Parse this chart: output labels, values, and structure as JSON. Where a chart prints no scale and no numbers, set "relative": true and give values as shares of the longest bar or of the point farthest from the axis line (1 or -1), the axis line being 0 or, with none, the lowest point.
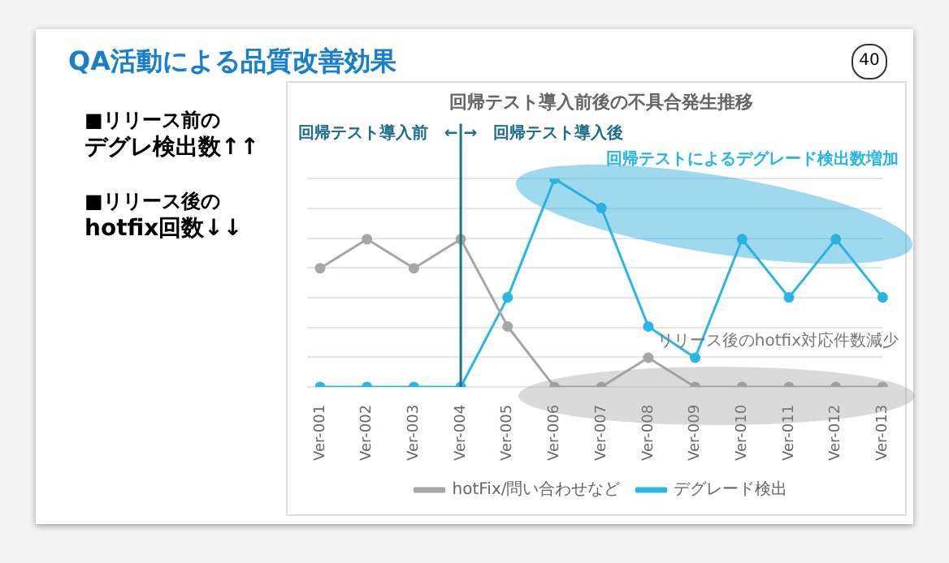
{
  "chart_data": {
    "type": "line",
    "title": "QA活動による品質改善効果",
    "subtitle": "回帰テスト導入前後の不具合発生推移",
    "categories": [
      "Ver-001",
      "Ver-002",
      "Ver-003",
      "Ver-004",
      "Ver-005",
      "Ver-006",
      "Ver-007",
      "Ver-008",
      "Ver-009",
      "Ver-010",
      "Ver-011",
      "Ver-012",
      "Ver-013"
    ],
    "relative": true,
    "series": [
      {
        "name": "hotFix/問い合わせなど",
        "color": "#a6a6a6",
        "values": [
          0.57,
          0.71,
          0.57,
          0.71,
          0.29,
          0,
          0,
          0.14,
          0,
          0,
          0,
          0,
          0
        ]
      },
      {
        "name": "デグレード検出",
        "color": "#29b6e6",
        "values": [
          0,
          0,
          0,
          0,
          0.43,
          1,
          0.86,
          0.29,
          0.14,
          0.71,
          0.43,
          0.71,
          0.43
        ]
      }
    ],
    "ref_lines": [
      {
        "axis": "x",
        "value": "Ver-004",
        "color": "#1f6e8c"
      }
    ],
    "annotations": [
      "40",
      "■リリース前の",
      "デグレ検出数↑↑",
      "■リリース後の",
      "hotfix回数↓↓",
      "回帰テスト導入前",
      "← →",
      "回帰テスト導入後",
      "回帰テストによるデグレード検出数増加",
      "リリース後のhotfix対応件数減少"
    ],
    "legend": "bottom",
    "marker": "circle",
    "line_style": "solid",
    "grid": "y"
  }
}
